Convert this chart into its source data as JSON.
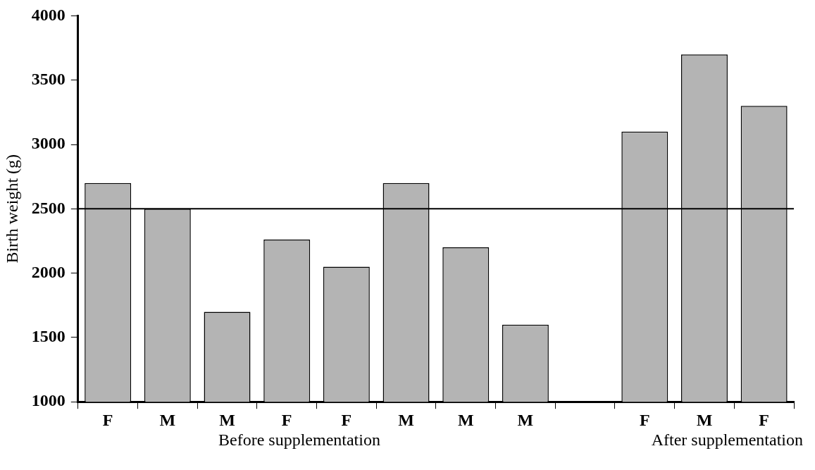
{
  "chart_data": {
    "type": "bar",
    "ylabel": "Birth weight (g)",
    "categories": [
      "F",
      "M",
      "M",
      "F",
      "F",
      "M",
      "M",
      "M",
      null,
      "F",
      "M",
      "F"
    ],
    "values": [
      2700,
      2500,
      1700,
      2260,
      2050,
      2700,
      2200,
      1600,
      null,
      3100,
      3700,
      3300
    ],
    "color": "#b4b4b4",
    "ylim": [
      1000,
      4000
    ],
    "yticks": [
      1000,
      1500,
      2000,
      2500,
      3000,
      3500,
      4000
    ],
    "grid": false,
    "legend": false,
    "ref_lines": [
      {
        "axis": "y",
        "value": 2500,
        "color": "#000000"
      }
    ],
    "annotations": [
      "Before supplementation",
      "After supplementation"
    ]
  }
}
